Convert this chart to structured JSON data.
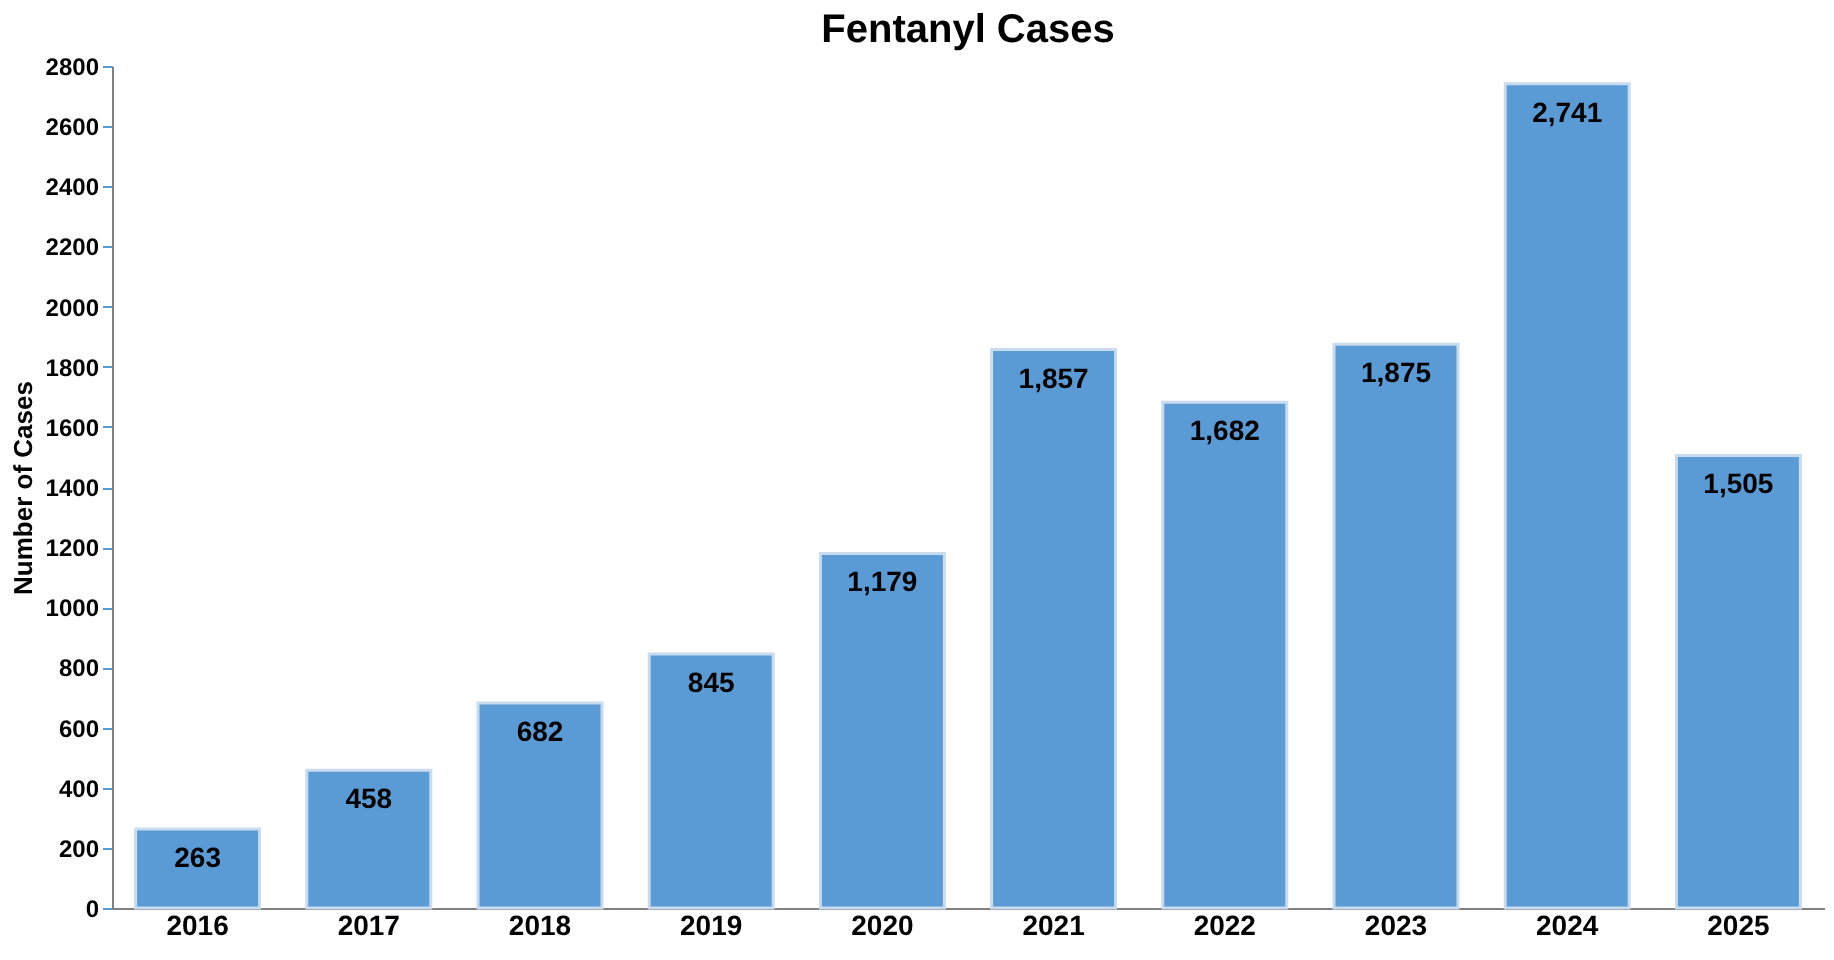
{
  "chart_data": {
    "type": "bar",
    "title": "Fentanyl Cases",
    "ylabel": "Number of Cases",
    "categories": [
      "2016",
      "2017",
      "2018",
      "2019",
      "2020",
      "2021",
      "2022",
      "2023",
      "2024",
      "2025"
    ],
    "values": [
      263,
      458,
      682,
      845,
      1179,
      1857,
      1682,
      1875,
      2741,
      1505
    ],
    "value_labels": [
      "263",
      "458",
      "682",
      "845",
      "1,179",
      "1,857",
      "1,682",
      "1,875",
      "2,741",
      "1,505"
    ],
    "color": "#5b9bd5",
    "ylim": [
      0,
      2800
    ],
    "yticks": [
      0,
      200,
      400,
      600,
      800,
      1000,
      1200,
      1400,
      1600,
      1800,
      2000,
      2200,
      2400,
      2600,
      2800
    ],
    "grid": false
  }
}
